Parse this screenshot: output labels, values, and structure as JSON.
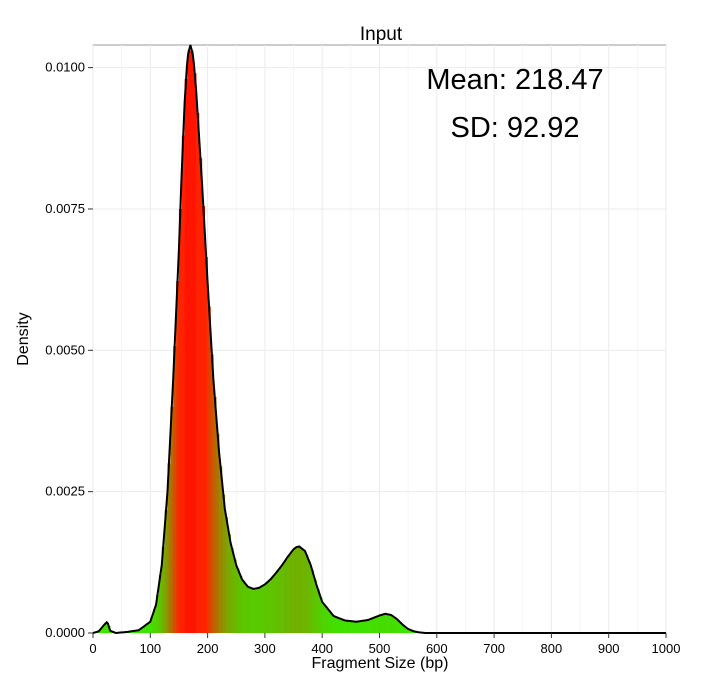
{
  "chart_data": {
    "type": "bar",
    "title": "Input",
    "xlabel": "Fragment Size (bp)",
    "ylabel": "Density",
    "xlim": [
      0,
      1000
    ],
    "ylim": [
      0,
      0.0104
    ],
    "xticks": [
      0,
      100,
      200,
      300,
      400,
      500,
      600,
      700,
      800,
      900,
      1000
    ],
    "xtick_labels": [
      "0",
      "100",
      "200",
      "300",
      "400",
      "500",
      "600",
      "700",
      "800",
      "900",
      "1000"
    ],
    "yticks": [
      0,
      0.0025,
      0.005,
      0.0075,
      0.01
    ],
    "ytick_labels": [
      "0.0000",
      "0.0025",
      "0.0050",
      "0.0075",
      "0.0100"
    ],
    "grid": true,
    "annotations": [
      "Mean: 218.47",
      "SD: 92.92"
    ],
    "colors": {
      "low": "#22dd00",
      "high": "#ff1500",
      "curve": "#000000"
    },
    "density_curve": {
      "x": [
        0,
        10,
        20,
        25,
        30,
        40,
        60,
        80,
        100,
        110,
        120,
        130,
        140,
        150,
        155,
        160,
        165,
        170,
        175,
        180,
        190,
        200,
        210,
        220,
        230,
        240,
        250,
        260,
        270,
        280,
        290,
        300,
        310,
        320,
        330,
        340,
        350,
        355,
        360,
        370,
        380,
        390,
        400,
        420,
        440,
        460,
        480,
        500,
        510,
        520,
        530,
        540,
        550,
        560,
        570,
        580,
        600,
        650,
        700,
        800,
        900,
        1000
      ],
      "y": [
        0,
        3e-05,
        0.00015,
        0.0002,
        4e-05,
        0,
        2e-05,
        5e-05,
        0.0002,
        0.0005,
        0.0012,
        0.0025,
        0.0045,
        0.0068,
        0.0082,
        0.0094,
        0.0102,
        0.0104,
        0.0102,
        0.0096,
        0.008,
        0.0062,
        0.0045,
        0.0032,
        0.0022,
        0.0016,
        0.0012,
        0.00095,
        0.00082,
        0.00078,
        0.0008,
        0.00086,
        0.00095,
        0.00107,
        0.0012,
        0.00135,
        0.00148,
        0.00152,
        0.00153,
        0.00145,
        0.0012,
        0.00085,
        0.00055,
        0.0003,
        0.00022,
        0.0002,
        0.00023,
        0.00031,
        0.00034,
        0.00032,
        0.00025,
        0.00015,
        7e-05,
        3e-05,
        1e-05,
        0,
        0,
        0,
        0,
        0,
        0,
        0
      ]
    },
    "histogram": {
      "bin_width": 5,
      "x_start": 0,
      "x_end": 580
    }
  }
}
